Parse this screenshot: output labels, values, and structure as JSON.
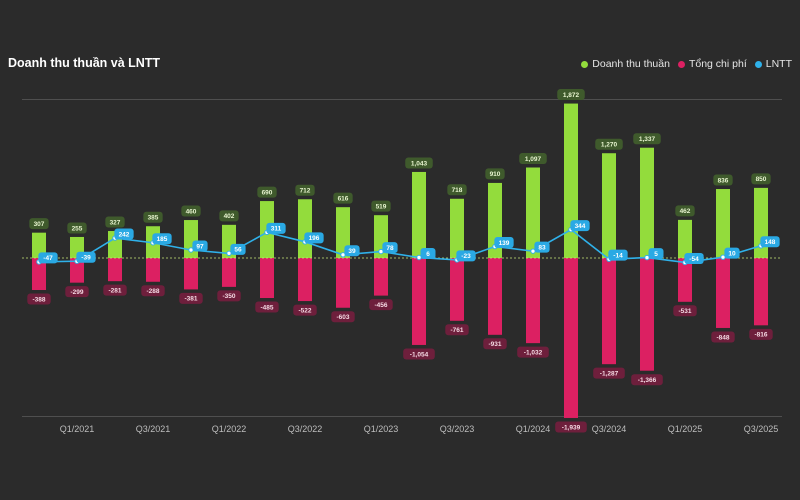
{
  "chart_data": {
    "type": "bar",
    "title": "Doanh thu thuần và LNTT",
    "categories": [
      "Q4/2020",
      "Q1/2021",
      "Q2/2021",
      "Q3/2021",
      "Q4/2021",
      "Q1/2022",
      "Q2/2022",
      "Q3/2022",
      "Q4/2022",
      "Q1/2023",
      "Q2/2023",
      "Q3/2023",
      "Q4/2023",
      "Q1/2024",
      "Q2/2024",
      "Q3/2024",
      "Q4/2024",
      "Q1/2025",
      "Q2/2025",
      "Q3/2025"
    ],
    "x_tick_labels": [
      "Q1/2021",
      "Q3/2021",
      "Q1/2022",
      "Q3/2022",
      "Q1/2023",
      "Q3/2023",
      "Q1/2024",
      "Q3/2024",
      "Q1/2025",
      "Q3/2025"
    ],
    "series": [
      {
        "name": "Doanh thu thuần",
        "type": "bar",
        "color": "#93dc3c",
        "values": [
          307,
          255,
          327,
          385,
          460,
          402,
          690,
          712,
          616,
          519,
          1043,
          718,
          910,
          1097,
          1872,
          1270,
          1337,
          462,
          836,
          850
        ],
        "labels": [
          "307",
          "255",
          "327",
          "385",
          "460",
          "402",
          "690",
          "712",
          "616",
          "519",
          "1,043",
          "718",
          "910",
          "1,097",
          "1,872",
          "1,270",
          "1,337",
          "462",
          "836",
          "850"
        ]
      },
      {
        "name": "Tổng chi phí",
        "type": "bar",
        "color": "#dc2062",
        "values": [
          -388,
          -299,
          -281,
          -288,
          -381,
          -350,
          -485,
          -522,
          -603,
          -456,
          -1054,
          -761,
          -931,
          -1032,
          -1939,
          -1287,
          -1366,
          -531,
          -848,
          -816
        ],
        "labels": [
          "-388",
          "-299",
          "-281",
          "-288",
          "-381",
          "-350",
          "-485",
          "-522",
          "-603",
          "-456",
          "-1,054",
          "-761",
          "-931",
          "-1,032",
          "-1,939",
          "-1,287",
          "-1,366",
          "-531",
          "-848",
          "-816"
        ]
      },
      {
        "name": "LNTT",
        "type": "line",
        "color": "#2fb1ea",
        "values": [
          -47,
          -39,
          242,
          185,
          97,
          56,
          311,
          196,
          39,
          78,
          6,
          -23,
          139,
          83,
          344,
          -14,
          5,
          -54,
          10,
          148
        ],
        "labels": [
          "-47",
          "-39",
          "242",
          "185",
          "97",
          "56",
          "311",
          "196",
          "39",
          "78",
          "6",
          "-23",
          "139",
          "83",
          "344",
          "-14",
          "5",
          "-54",
          "10",
          "148"
        ]
      }
    ],
    "ylim": [
      -2000,
      2000
    ],
    "grid": true,
    "legend_position": "top-right"
  }
}
